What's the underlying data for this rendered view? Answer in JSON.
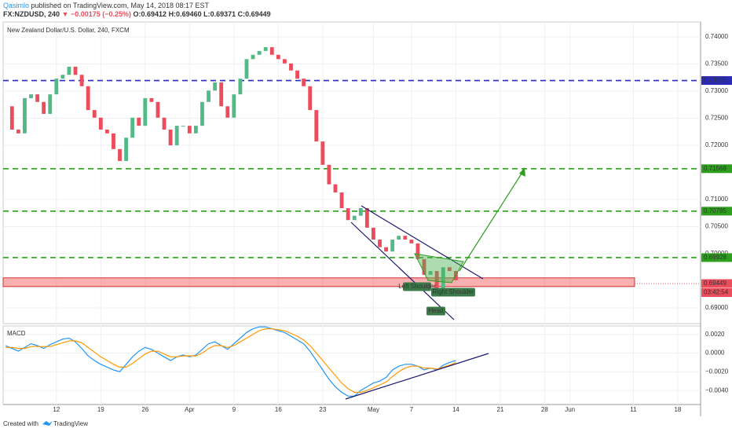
{
  "header": {
    "author": "Qasimlo",
    "published": "published on TradingView.com, May 14, 2018 08:17 EST",
    "symbol": "FX:NZDUSD, 240",
    "change": "▼ −0.00175 (−0.25%)",
    "open": "O:0.69412",
    "high": "H:0.69460",
    "low": "L:0.69371",
    "close": "C:0.69449"
  },
  "chart_data": {
    "type": "candlestick",
    "title": "New Zealand Dollar/U.S. Dollar, 240, FXCM",
    "x": [
      63,
      64,
      65,
      66,
      67,
      68,
      69,
      70,
      71,
      72,
      73,
      74,
      75,
      76,
      77,
      78,
      79,
      80,
      81,
      82,
      83,
      84,
      85,
      86,
      87,
      88,
      89,
      90,
      91,
      92,
      93,
      94,
      95,
      96,
      97,
      98,
      99,
      100,
      101,
      102,
      103,
      104,
      105,
      106,
      107,
      108,
      109,
      110,
      111,
      112,
      113,
      114,
      115,
      116,
      117,
      118,
      119,
      120,
      121,
      122,
      123,
      124,
      125,
      126,
      127,
      128,
      129,
      130,
      131,
      132,
      133,
      134
    ],
    "values": [
      0.7272,
      0.7229,
      0.7222,
      0.7287,
      0.7294,
      0.728,
      0.7258,
      0.7294,
      0.7323,
      0.733,
      0.7345,
      0.733,
      0.7309,
      0.7265,
      0.7251,
      0.7229,
      0.7222,
      0.7193,
      0.7171,
      0.7214,
      0.7251,
      0.7236,
      0.7287,
      0.728,
      0.7251,
      0.7229,
      0.72,
      0.7236,
      0.7236,
      0.7222,
      0.7236,
      0.728,
      0.7301,
      0.7316,
      0.7272,
      0.7251,
      0.7294,
      0.7323,
      0.7359,
      0.7367,
      0.7374,
      0.7381,
      0.7367,
      0.7359,
      0.7351,
      0.7338,
      0.7323,
      0.7309,
      0.7265,
      0.7207,
      0.7164,
      0.7128,
      0.7113,
      0.7084,
      0.7062,
      0.707,
      0.7084,
      0.7048,
      0.7026,
      0.7012,
      0.7004,
      0.7026,
      0.7033,
      0.7026,
      0.7019,
      0.699,
      0.6961,
      0.6968,
      0.6932,
      0.6975,
      0.6968,
      0.6951
    ],
    "up_color": "#53b987",
    "down_color": "#eb4d5c",
    "xlim": [
      62.6,
      172.6
    ],
    "xticks": [
      {
        "value": 71,
        "label": "12"
      },
      {
        "value": 78,
        "label": "19"
      },
      {
        "value": 85,
        "label": "26"
      },
      {
        "value": 92,
        "label": "Apr"
      },
      {
        "value": 99,
        "label": "9"
      },
      {
        "value": 106,
        "label": "16"
      },
      {
        "value": 113,
        "label": "23"
      },
      {
        "value": 121,
        "label": "May"
      },
      {
        "value": 127,
        "label": "7"
      },
      {
        "value": 134,
        "label": "14"
      },
      {
        "value": 141,
        "label": "21"
      },
      {
        "value": 148,
        "label": "28"
      },
      {
        "value": 152,
        "label": "Jun"
      },
      {
        "value": 162,
        "label": "11"
      },
      {
        "value": 169,
        "label": "18"
      }
    ],
    "ylim": [
      0.6871,
      0.74275
    ],
    "yticks": [
      {
        "value": 0.74,
        "label": "0.74000"
      },
      {
        "value": 0.735,
        "label": "0.73500"
      },
      {
        "value": 0.73,
        "label": "0.73000"
      },
      {
        "value": 0.725,
        "label": "0.72500"
      },
      {
        "value": 0.72,
        "label": "0.72000"
      },
      {
        "value": 0.71,
        "label": "0.71000"
      },
      {
        "value": 0.705,
        "label": "0.70500"
      },
      {
        "value": 0.7,
        "label": "0.70000"
      },
      {
        "value": 0.69,
        "label": "0.69000"
      }
    ],
    "grid": true,
    "levels": [
      {
        "value": 0.73195,
        "label": "0.73195",
        "color": "#2b2bb5"
      },
      {
        "value": 0.71568,
        "label": "0.71568",
        "color": "#2e9e1f"
      },
      {
        "value": 0.70785,
        "label": "0.70785",
        "color": "#2e9e1f"
      },
      {
        "value": 0.69928,
        "label": "0.69928",
        "color": "#2e9e1f"
      }
    ],
    "last_price": {
      "value": 0.69449,
      "label": "0.69449"
    },
    "countdown": "03:42:54",
    "zone": [
      0.69394,
      0.69554
    ],
    "annotations": [
      "Left Shoulder",
      "Head",
      "Right Shoulder"
    ],
    "macd": {
      "title": "MACD",
      "ylim": [
        -0.0055,
        0.0029
      ],
      "yticks": [
        {
          "value": 0.002,
          "label": "0.0020"
        },
        {
          "value": 0,
          "label": "0.0000"
        },
        {
          "value": -0.002,
          "label": "−0.0020"
        },
        {
          "value": -0.004,
          "label": "−0.0040"
        }
      ],
      "series": [
        {
          "color": "#2196f3",
          "values": [
            0.0008,
            0.0005,
            0.0002,
            0.0006,
            0.001,
            0.0008,
            0.0005,
            0.0009,
            0.0012,
            0.0015,
            0.0016,
            0.0012,
            0.0005,
            -0.0003,
            -0.0008,
            -0.0012,
            -0.0015,
            -0.0018,
            -0.002,
            -0.0012,
            -0.0004,
            0.0002,
            0.0006,
            0.0004,
            0.0,
            -0.0004,
            -0.0008,
            -0.0004,
            -0.0002,
            -0.0004,
            -0.0002,
            0.0004,
            0.001,
            0.0012,
            0.0008,
            0.0004,
            0.001,
            0.0016,
            0.0022,
            0.0026,
            0.0028,
            0.0028,
            0.0026,
            0.0024,
            0.0022,
            0.0018,
            0.0014,
            0.001,
            0.0002,
            -0.0008,
            -0.0018,
            -0.0028,
            -0.0036,
            -0.0042,
            -0.0046,
            -0.0046,
            -0.004,
            -0.0036,
            -0.0032,
            -0.003,
            -0.0026,
            -0.0018,
            -0.0014,
            -0.0012,
            -0.0012,
            -0.0014,
            -0.0018,
            -0.0016,
            -0.0018,
            -0.0013,
            -0.001,
            -0.0008
          ]
        },
        {
          "color": "#ff9800",
          "values": [
            0.0006,
            0.0006,
            0.0005,
            0.0005,
            0.0007,
            0.0007,
            0.0007,
            0.0007,
            0.0009,
            0.0011,
            0.0013,
            0.0013,
            0.0011,
            0.0006,
            0.0001,
            -0.0004,
            -0.0008,
            -0.0012,
            -0.0015,
            -0.0015,
            -0.0011,
            -0.0006,
            -0.0001,
            0.0002,
            0.0002,
            -0.0001,
            -0.0004,
            -0.0004,
            -0.0003,
            -0.0003,
            -0.0003,
            0.0,
            0.0005,
            0.0008,
            0.0008,
            0.0006,
            0.0008,
            0.0012,
            0.0016,
            0.002,
            0.0024,
            0.0026,
            0.0026,
            0.0025,
            0.0024,
            0.0021,
            0.0018,
            0.0014,
            0.0008,
            0.0,
            -0.0008,
            -0.0016,
            -0.0024,
            -0.0032,
            -0.0038,
            -0.0042,
            -0.0042,
            -0.004,
            -0.0037,
            -0.0034,
            -0.0031,
            -0.0025,
            -0.002,
            -0.0016,
            -0.0014,
            -0.0014,
            -0.0016,
            -0.0016,
            -0.0017,
            -0.0015,
            -0.0013,
            -0.001
          ]
        }
      ]
    }
  },
  "footer": {
    "created": "Created with",
    "brand": "TradingView"
  }
}
